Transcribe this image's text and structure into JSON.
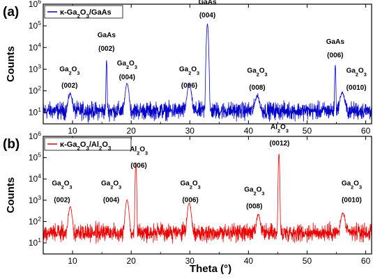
{
  "xlabel": "Theta (°)",
  "chart_data": [
    {
      "type": "line",
      "panel_label": "(a)",
      "ylabel": "Counts",
      "yscale": "log",
      "ylim": [
        3,
        1000000
      ],
      "xlim": [
        5,
        61
      ],
      "x_ticks": [
        "10",
        "20",
        "30",
        "40",
        "50",
        "60"
      ],
      "y_ticks": [
        {
          "b": "10",
          "e": "1"
        },
        {
          "b": "10",
          "e": "2"
        },
        {
          "b": "10",
          "e": "3"
        },
        {
          "b": "10",
          "e": "4"
        },
        {
          "b": "10",
          "e": "5"
        },
        {
          "b": "10",
          "e": "6"
        }
      ],
      "series": [
        {
          "name": "κ-Ga2O3/GaAs",
          "color": "#0000cc"
        }
      ],
      "legend": {
        "prefix": "κ-Ga",
        "a": "2",
        "mid": "O",
        "b": "3",
        "suffix": "/GaAs"
      },
      "baseline": 12,
      "peaks": [
        {
          "x": 9.6,
          "y": 60,
          "w": 0.35
        },
        {
          "x": 15.8,
          "y": 2500,
          "w": 0.07
        },
        {
          "x": 19.3,
          "y": 200,
          "w": 0.3
        },
        {
          "x": 29.9,
          "y": 180,
          "w": 0.35
        },
        {
          "x": 33.0,
          "y": 120000,
          "w": 0.14
        },
        {
          "x": 41.5,
          "y": 45,
          "w": 0.4
        },
        {
          "x": 54.8,
          "y": 1500,
          "w": 0.08
        },
        {
          "x": 56.0,
          "y": 70,
          "w": 0.4
        }
      ],
      "annotations": [
        {
          "kind": "g",
          "x": 9.5,
          "l1y": 800,
          "l2y": 200,
          "idx": "(002)",
          "small": false
        },
        {
          "kind": "t",
          "x": 15.8,
          "l1y": 30000,
          "l2y": 7000,
          "name": "GaAs",
          "idx": "(002)"
        },
        {
          "kind": "g",
          "x": 19.3,
          "l1y": 1500,
          "l2y": 500,
          "idx": "(004)",
          "small": true
        },
        {
          "kind": "g",
          "x": 29.9,
          "l1y": 800,
          "l2y": 200,
          "idx": "(006)",
          "small": false
        },
        {
          "kind": "t",
          "x": 33.0,
          "l1y": 1000000,
          "l2y": 250000,
          "name": "GaAs",
          "idx": "(004)"
        },
        {
          "kind": "g",
          "x": 41.5,
          "l1y": 700,
          "l2y": 160,
          "idx": "(008)",
          "small": false
        },
        {
          "kind": "t",
          "x": 54.8,
          "l1y": 15000,
          "l2y": 3500,
          "name": "GaAs",
          "idx": "(006)"
        },
        {
          "kind": "g",
          "x": 58.4,
          "l1y": 700,
          "l2y": 160,
          "idx": "(0010)",
          "small": false
        }
      ]
    },
    {
      "type": "line",
      "panel_label": "(b)",
      "ylabel": "Counts",
      "yscale": "log",
      "ylim": [
        3,
        1000000
      ],
      "xlim": [
        5,
        61
      ],
      "x_ticks": [
        "10",
        "20",
        "30",
        "40",
        "50",
        "60"
      ],
      "y_ticks": [
        {
          "b": "10",
          "e": "1"
        },
        {
          "b": "10",
          "e": "2"
        },
        {
          "b": "10",
          "e": "3"
        },
        {
          "b": "10",
          "e": "4"
        },
        {
          "b": "10",
          "e": "5"
        },
        {
          "b": "10",
          "e": "6"
        }
      ],
      "series": [
        {
          "name": "κ-Ga2O3/Al2O3",
          "color": "#ee0000"
        }
      ],
      "legend": {
        "prefix": "κ-Ga",
        "a": "2",
        "mid": "O",
        "b": "3",
        "mid2": "/Al",
        "c": "2",
        "mid3": "O",
        "d": "3"
      },
      "baseline": 30,
      "peaks": [
        {
          "x": 9.6,
          "y": 450,
          "w": 0.3
        },
        {
          "x": 19.3,
          "y": 1000,
          "w": 0.28
        },
        {
          "x": 20.8,
          "y": 60000,
          "w": 0.09
        },
        {
          "x": 29.9,
          "y": 700,
          "w": 0.3
        },
        {
          "x": 41.7,
          "y": 180,
          "w": 0.3
        },
        {
          "x": 45.2,
          "y": 150000,
          "w": 0.09
        },
        {
          "x": 56.1,
          "y": 220,
          "w": 0.35
        }
      ],
      "annotations": [
        {
          "kind": "g",
          "x": 8.2,
          "l1y": 5000,
          "l2y": 1200,
          "idx": "(002)"
        },
        {
          "kind": "g",
          "x": 16.6,
          "l1y": 5000,
          "l2y": 1200,
          "idx": "(004)"
        },
        {
          "kind": "a",
          "x": 21.3,
          "l1y": 200000,
          "l2y": 50000,
          "idx": "(006)"
        },
        {
          "kind": "g",
          "x": 30.1,
          "l1y": 5000,
          "l2y": 1200,
          "idx": "(006)"
        },
        {
          "kind": "g",
          "x": 41.0,
          "l1y": 2500,
          "l2y": 600,
          "idx": "(008)"
        },
        {
          "kind": "a",
          "x": 45.3,
          "l1y": 2200000,
          "l2y": 550000,
          "idx": "(0012)"
        },
        {
          "kind": "g",
          "x": 57.6,
          "l1y": 5000,
          "l2y": 1200,
          "idx": "(0010)"
        }
      ]
    }
  ]
}
